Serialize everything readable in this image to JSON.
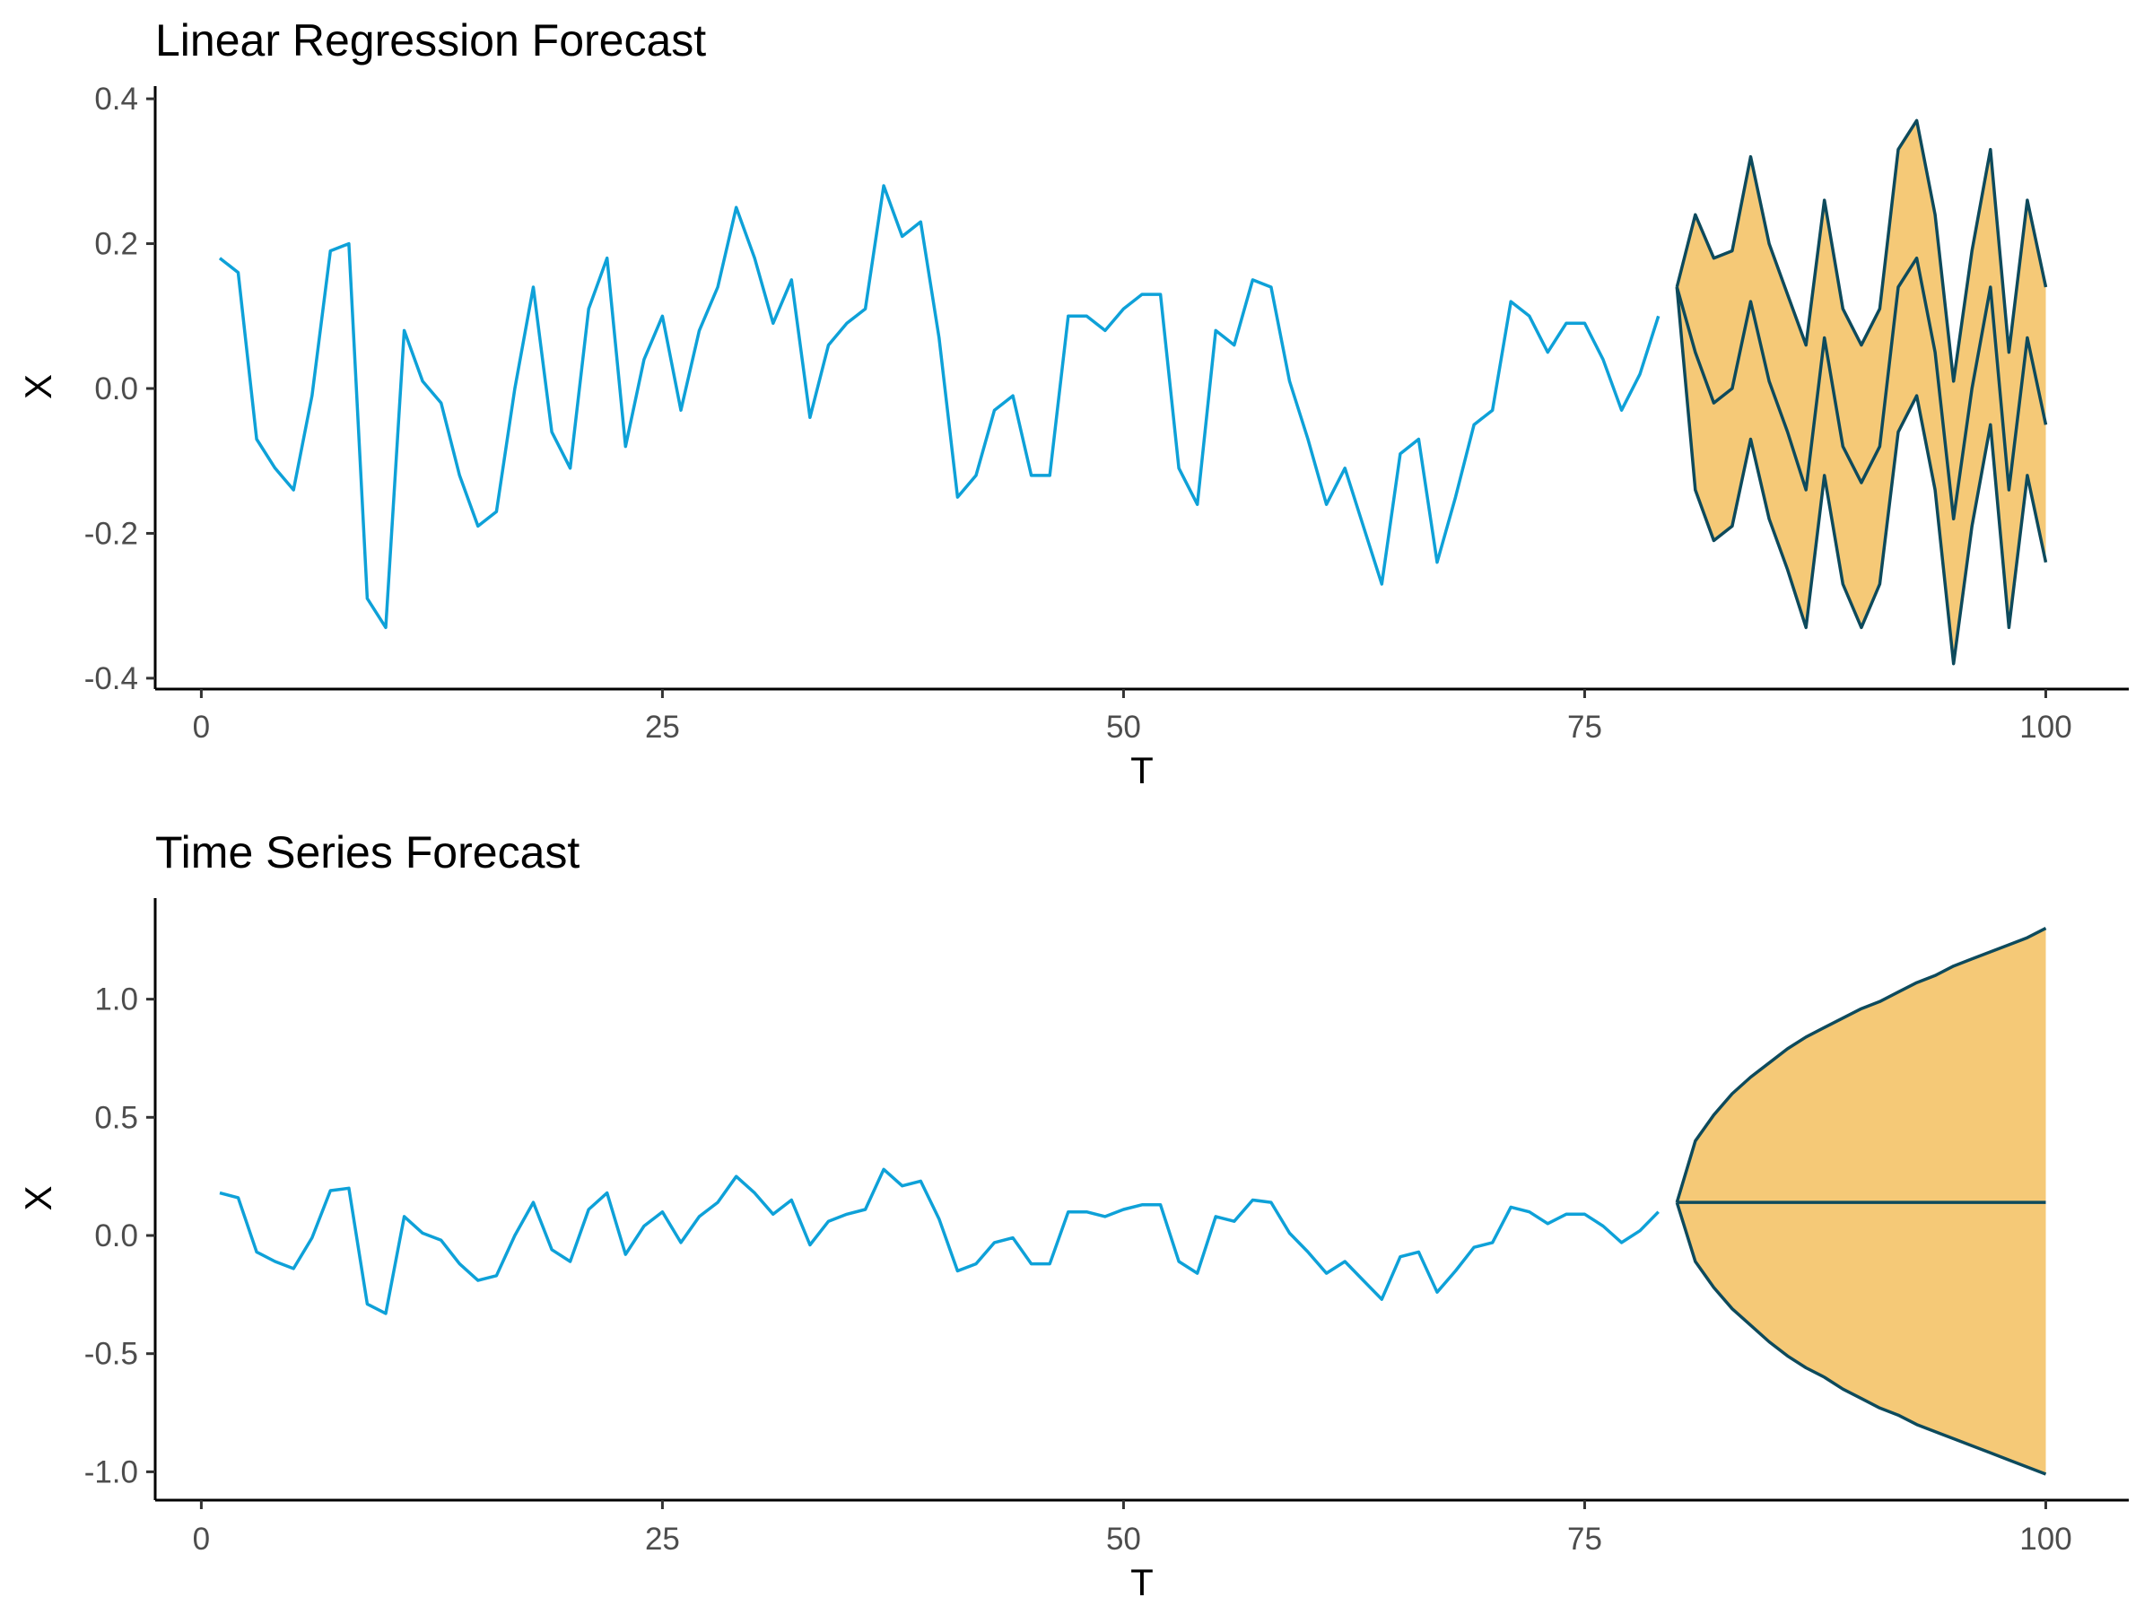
{
  "colors": {
    "observed": "#0ea1d8",
    "forecast_line": "#0d4a5c",
    "band_fill": "#f5c977",
    "axis": "#000000",
    "tick_label": "#4d4d4d"
  },
  "chart_data": [
    {
      "type": "line",
      "title": "Linear Regression Forecast",
      "xlabel": "T",
      "ylabel": "X",
      "xlim": [
        -2.5,
        104.5
      ],
      "ylim": [
        -0.415,
        0.415
      ],
      "xticks": [
        0,
        25,
        50,
        75,
        100
      ],
      "xtick_labels": [
        "0",
        "25",
        "50",
        "75",
        "100"
      ],
      "yticks": [
        -0.4,
        -0.2,
        0.0,
        0.2,
        0.4
      ],
      "ytick_labels": [
        "-0.4",
        "-0.2",
        "0.0",
        "0.2",
        "0.4"
      ],
      "grid": false,
      "observed": {
        "x": [
          1,
          2,
          3,
          4,
          5,
          6,
          7,
          8,
          9,
          10,
          11,
          12,
          13,
          14,
          15,
          16,
          17,
          18,
          19,
          20,
          21,
          22,
          23,
          24,
          25,
          26,
          27,
          28,
          29,
          30,
          31,
          32,
          33,
          34,
          35,
          36,
          37,
          38,
          39,
          40,
          41,
          42,
          43,
          44,
          45,
          46,
          47,
          48,
          49,
          50,
          51,
          52,
          53,
          54,
          55,
          56,
          57,
          58,
          59,
          60,
          61,
          62,
          63,
          64,
          65,
          66,
          67,
          68,
          69,
          70,
          71,
          72,
          73,
          74,
          75,
          76,
          77,
          78,
          79
        ],
        "y": [
          0.18,
          0.16,
          -0.07,
          -0.11,
          -0.14,
          -0.01,
          0.19,
          0.2,
          -0.29,
          -0.33,
          0.08,
          0.01,
          -0.02,
          -0.12,
          -0.19,
          -0.17,
          0.0,
          0.14,
          -0.06,
          -0.11,
          0.11,
          0.18,
          -0.08,
          0.04,
          0.1,
          -0.03,
          0.08,
          0.14,
          0.25,
          0.18,
          0.09,
          0.15,
          -0.04,
          0.06,
          0.09,
          0.11,
          0.28,
          0.21,
          0.23,
          0.07,
          -0.15,
          -0.12,
          -0.03,
          -0.01,
          -0.12,
          -0.12,
          0.1,
          0.1,
          0.08,
          0.11,
          0.13,
          0.13,
          -0.11,
          -0.16,
          0.08,
          0.06,
          0.15,
          0.14,
          0.01,
          -0.07,
          -0.16,
          -0.11,
          -0.19,
          -0.27,
          -0.09,
          -0.07,
          -0.24,
          -0.15,
          -0.05,
          -0.03,
          0.12,
          0.1,
          0.05,
          0.09,
          0.09,
          0.04,
          -0.03,
          0.02,
          0.1
        ]
      },
      "forecast": {
        "x": [
          80,
          81,
          82,
          83,
          84,
          85,
          86,
          87,
          88,
          89,
          90,
          91,
          92,
          93,
          94,
          95,
          96,
          97,
          98,
          99,
          100
        ],
        "mean": [
          0.14,
          0.05,
          -0.02,
          0.0,
          0.12,
          0.01,
          -0.06,
          -0.14,
          0.07,
          -0.08,
          -0.13,
          -0.08,
          0.14,
          0.18,
          0.05,
          -0.18,
          0.0,
          0.14,
          -0.14,
          0.07,
          -0.05
        ],
        "upper": [
          0.14,
          0.24,
          0.18,
          0.19,
          0.32,
          0.2,
          0.13,
          0.06,
          0.26,
          0.11,
          0.06,
          0.11,
          0.33,
          0.37,
          0.24,
          0.01,
          0.19,
          0.33,
          0.05,
          0.26,
          0.14
        ],
        "lower": [
          0.14,
          -0.14,
          -0.21,
          -0.19,
          -0.07,
          -0.18,
          -0.25,
          -0.33,
          -0.12,
          -0.27,
          -0.33,
          -0.27,
          -0.06,
          -0.01,
          -0.14,
          -0.38,
          -0.19,
          -0.05,
          -0.33,
          -0.12,
          -0.24
        ]
      }
    },
    {
      "type": "line",
      "title": "Time Series Forecast",
      "xlabel": "T",
      "ylabel": "X",
      "xlim": [
        -2.5,
        104.5
      ],
      "ylim": [
        -1.12,
        1.42
      ],
      "xticks": [
        0,
        25,
        50,
        75,
        100
      ],
      "xtick_labels": [
        "0",
        "25",
        "50",
        "75",
        "100"
      ],
      "yticks": [
        -1.0,
        -0.5,
        0.0,
        0.5,
        1.0
      ],
      "ytick_labels": [
        "-1.0",
        "-0.5",
        "0.0",
        "0.5",
        "1.0"
      ],
      "grid": false,
      "observed": {
        "x": [
          1,
          2,
          3,
          4,
          5,
          6,
          7,
          8,
          9,
          10,
          11,
          12,
          13,
          14,
          15,
          16,
          17,
          18,
          19,
          20,
          21,
          22,
          23,
          24,
          25,
          26,
          27,
          28,
          29,
          30,
          31,
          32,
          33,
          34,
          35,
          36,
          37,
          38,
          39,
          40,
          41,
          42,
          43,
          44,
          45,
          46,
          47,
          48,
          49,
          50,
          51,
          52,
          53,
          54,
          55,
          56,
          57,
          58,
          59,
          60,
          61,
          62,
          63,
          64,
          65,
          66,
          67,
          68,
          69,
          70,
          71,
          72,
          73,
          74,
          75,
          76,
          77,
          78,
          79
        ],
        "y": [
          0.18,
          0.16,
          -0.07,
          -0.11,
          -0.14,
          -0.01,
          0.19,
          0.2,
          -0.29,
          -0.33,
          0.08,
          0.01,
          -0.02,
          -0.12,
          -0.19,
          -0.17,
          0.0,
          0.14,
          -0.06,
          -0.11,
          0.11,
          0.18,
          -0.08,
          0.04,
          0.1,
          -0.03,
          0.08,
          0.14,
          0.25,
          0.18,
          0.09,
          0.15,
          -0.04,
          0.06,
          0.09,
          0.11,
          0.28,
          0.21,
          0.23,
          0.07,
          -0.15,
          -0.12,
          -0.03,
          -0.01,
          -0.12,
          -0.12,
          0.1,
          0.1,
          0.08,
          0.11,
          0.13,
          0.13,
          -0.11,
          -0.16,
          0.08,
          0.06,
          0.15,
          0.14,
          0.01,
          -0.07,
          -0.16,
          -0.11,
          -0.19,
          -0.27,
          -0.09,
          -0.07,
          -0.24,
          -0.15,
          -0.05,
          -0.03,
          0.12,
          0.1,
          0.05,
          0.09,
          0.09,
          0.04,
          -0.03,
          0.02,
          0.1
        ]
      },
      "forecast": {
        "x": [
          80,
          81,
          82,
          83,
          84,
          85,
          86,
          87,
          88,
          89,
          90,
          91,
          92,
          93,
          94,
          95,
          96,
          97,
          98,
          99,
          100
        ],
        "mean": [
          0.14,
          0.14,
          0.14,
          0.14,
          0.14,
          0.14,
          0.14,
          0.14,
          0.14,
          0.14,
          0.14,
          0.14,
          0.14,
          0.14,
          0.14,
          0.14,
          0.14,
          0.14,
          0.14,
          0.14,
          0.14
        ],
        "upper": [
          0.14,
          0.4,
          0.51,
          0.6,
          0.67,
          0.73,
          0.79,
          0.84,
          0.88,
          0.92,
          0.96,
          0.99,
          1.03,
          1.07,
          1.1,
          1.14,
          1.17,
          1.2,
          1.23,
          1.26,
          1.3
        ],
        "lower": [
          0.14,
          -0.11,
          -0.22,
          -0.31,
          -0.38,
          -0.45,
          -0.51,
          -0.56,
          -0.6,
          -0.65,
          -0.69,
          -0.73,
          -0.76,
          -0.8,
          -0.83,
          -0.86,
          -0.89,
          -0.92,
          -0.95,
          -0.98,
          -1.01
        ]
      }
    }
  ]
}
